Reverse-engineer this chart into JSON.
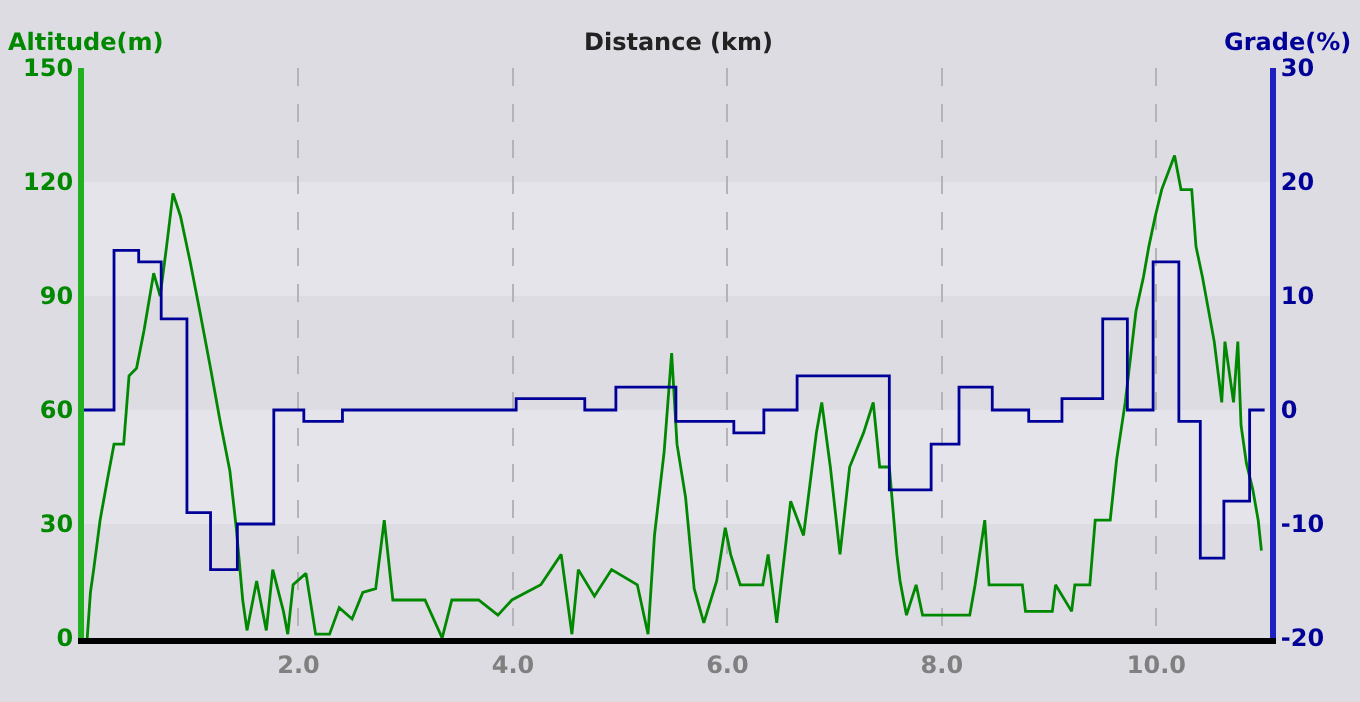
{
  "chart_data": {
    "type": "line",
    "title": "Distance (km)",
    "ylabel": "Altitude(m)",
    "y2label": "Grade(%)",
    "xlim": [
      0,
      11.06
    ],
    "xticks": [
      {
        "value": 2,
        "label": "2.0"
      },
      {
        "value": 4,
        "label": "4.0"
      },
      {
        "value": 6,
        "label": "6.0"
      },
      {
        "value": 8,
        "label": "8.0"
      },
      {
        "value": 10,
        "label": "10.0"
      }
    ],
    "ylim": [
      0,
      150
    ],
    "yticks": [
      0,
      30,
      60,
      90,
      120,
      150
    ],
    "y2lim": [
      -20,
      30
    ],
    "y2ticks": [
      -20,
      -10,
      0,
      10,
      20,
      30
    ],
    "grid": "x",
    "marker": "none",
    "bands": [
      {
        "axis": "y",
        "from": 30,
        "to": 60,
        "color": "#e4e4ea"
      },
      {
        "axis": "y",
        "from": 90,
        "to": 120,
        "color": "#e4e4ea"
      }
    ],
    "series": [
      {
        "color": "#008800",
        "x": [
          0.03,
          0.06,
          0.09,
          0.15,
          0.22,
          0.28,
          0.37,
          0.42,
          0.49,
          0.56,
          0.65,
          0.71,
          0.77,
          0.83,
          0.9,
          0.99,
          1.08,
          1.18,
          1.27,
          1.36,
          1.42,
          1.48,
          1.52,
          1.61,
          1.7,
          1.76,
          1.86,
          1.9,
          1.95,
          2.07,
          2.16,
          2.29,
          2.38,
          2.5,
          2.6,
          2.72,
          2.8,
          2.88,
          3.0,
          3.18,
          3.34,
          3.43,
          3.68,
          3.86,
          3.99,
          4.26,
          4.45,
          4.55,
          4.61,
          4.76,
          4.92,
          5.16,
          5.26,
          5.32,
          5.41,
          5.48,
          5.53,
          5.61,
          5.69,
          5.78,
          5.9,
          5.98,
          6.03,
          6.12,
          6.33,
          6.38,
          6.46,
          6.59,
          6.71,
          6.83,
          6.88,
          6.96,
          7.05,
          7.14,
          7.27,
          7.36,
          7.42,
          7.51,
          7.58,
          7.61,
          7.67,
          7.76,
          7.82,
          7.92,
          8.01,
          8.26,
          8.31,
          8.4,
          8.44,
          8.75,
          8.78,
          9.03,
          9.06,
          9.21,
          9.24,
          9.38,
          9.43,
          9.57,
          9.63,
          9.71,
          9.81,
          9.88,
          9.93,
          9.99,
          10.05,
          10.17,
          10.23,
          10.33,
          10.37,
          10.43,
          10.54,
          10.61,
          10.64,
          10.72,
          10.76,
          10.79,
          10.84,
          10.9,
          10.95,
          10.98
        ],
        "values": [
          0,
          12,
          18,
          31,
          42,
          51,
          51,
          69,
          71,
          81,
          96,
          90,
          103,
          117,
          111,
          99,
          86,
          71,
          57,
          44,
          29,
          10,
          2,
          15,
          2,
          18,
          7,
          1,
          14,
          17,
          1,
          1,
          8,
          5,
          12,
          13,
          31,
          10,
          10,
          10,
          0,
          10,
          10,
          6,
          10,
          14,
          22,
          1,
          18,
          11,
          18,
          14,
          1,
          27,
          49,
          75,
          51,
          37,
          13,
          4,
          15,
          29,
          22,
          14,
          14,
          22,
          4,
          36,
          27,
          54,
          62,
          45,
          22,
          45,
          54,
          62,
          45,
          45,
          22,
          15,
          6,
          14,
          6,
          6,
          6,
          6,
          14,
          31,
          14,
          14,
          7,
          7,
          14,
          7,
          14,
          14,
          31,
          31,
          47,
          62,
          86,
          95,
          103,
          111,
          118,
          127,
          118,
          118,
          103,
          95,
          78,
          62,
          78,
          62,
          78,
          56,
          46,
          39,
          31,
          23
        ]
      },
      {
        "type": "step",
        "axis": "y2",
        "color": "#000099",
        "x": [
          0,
          0.28,
          0.51,
          0.72,
          0.96,
          1.18,
          1.43,
          1.77,
          2.05,
          2.41,
          4.03,
          4.67,
          4.96,
          5.52,
          6.06,
          6.34,
          6.65,
          7.51,
          7.9,
          8.16,
          8.47,
          8.81,
          9.12,
          9.5,
          9.73,
          9.97,
          10.21,
          10.41,
          10.63,
          10.87,
          11.01
        ],
        "values": [
          0,
          14,
          13,
          8,
          -9,
          -14,
          -10,
          0,
          -1,
          0,
          1,
          0,
          2,
          -1,
          -2,
          0,
          3,
          -7,
          -3,
          2,
          0,
          -1,
          1,
          8,
          0,
          13,
          -1,
          -13,
          -8,
          0,
          0
        ]
      }
    ]
  }
}
